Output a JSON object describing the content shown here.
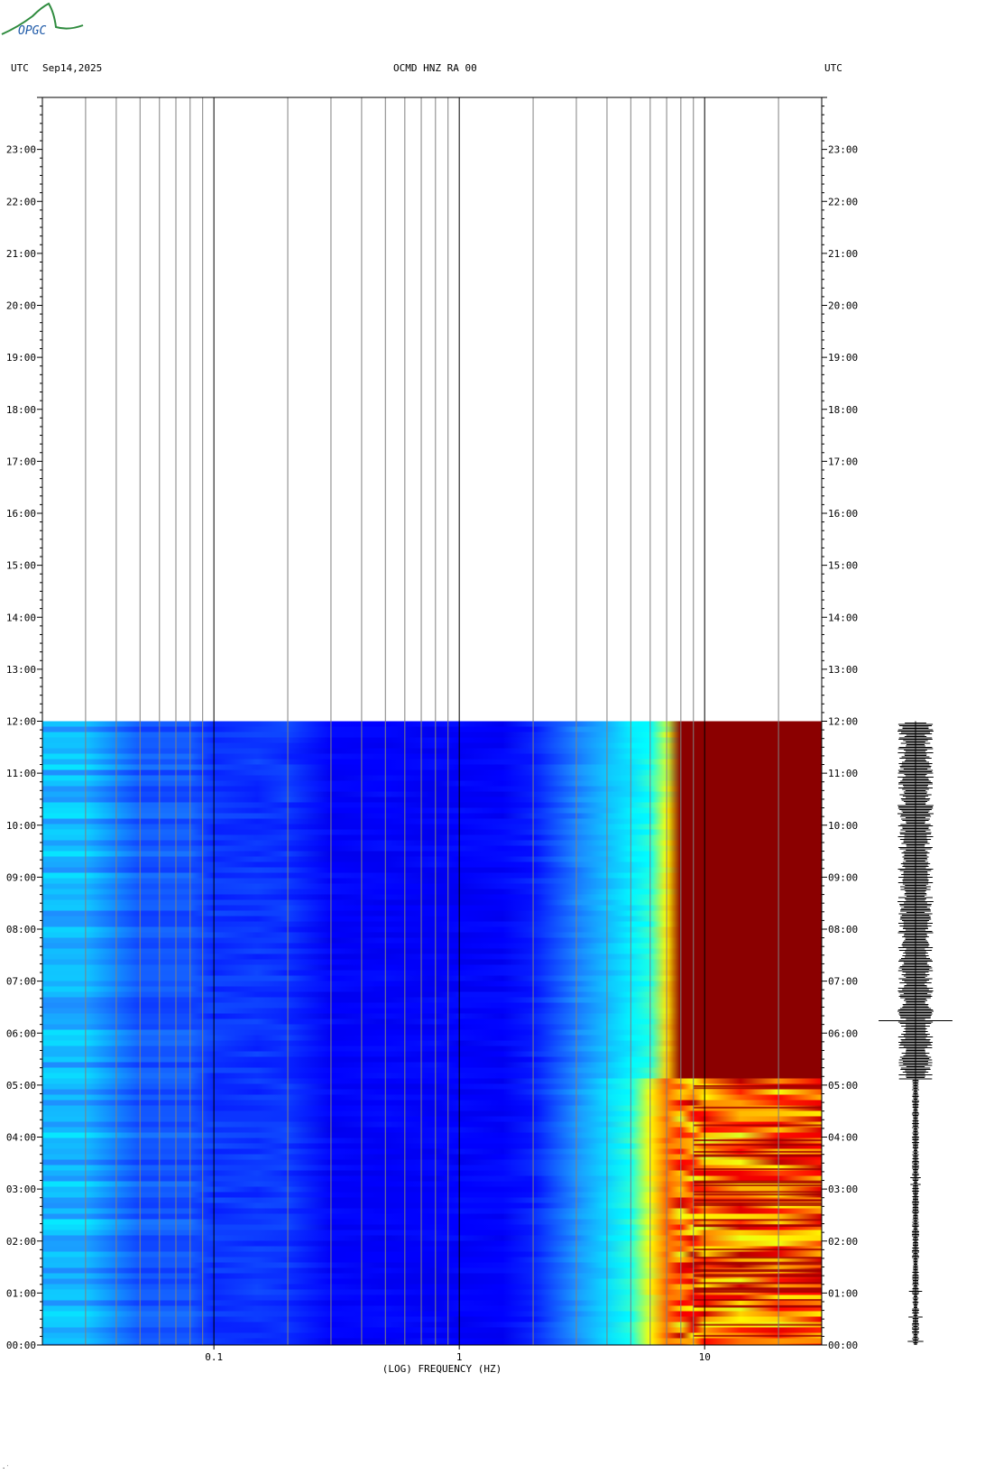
{
  "logo": {
    "text": "OPGC",
    "color": "#2e8b3e",
    "text_color": "#1e5aa8"
  },
  "header": {
    "left_tz": "UTC",
    "date": "Sep14,2025",
    "station": "OCMD HNZ RA 00",
    "right_tz": "UTC"
  },
  "footer": {
    "glyph": "·˙"
  },
  "chart_data": {
    "type": "heatmap",
    "subtype": "spectrogram",
    "title": "OCMD HNZ RA 00",
    "xlabel": "(LOG) FREQUENCY (HZ)",
    "ylabel": "",
    "x_scale": "log",
    "xlim": [
      0.02,
      30
    ],
    "x_ticks": [
      {
        "value": 0.1,
        "label": "0.1"
      },
      {
        "value": 1,
        "label": "1"
      },
      {
        "value": 10,
        "label": "10"
      }
    ],
    "ylim_hours": [
      0,
      24
    ],
    "y_ticks": [
      "00:00",
      "01:00",
      "02:00",
      "03:00",
      "04:00",
      "05:00",
      "06:00",
      "07:00",
      "08:00",
      "09:00",
      "10:00",
      "11:00",
      "12:00",
      "13:00",
      "14:00",
      "15:00",
      "16:00",
      "17:00",
      "18:00",
      "19:00",
      "20:00",
      "21:00",
      "22:00",
      "23:00"
    ],
    "data_end_hour": 12.0,
    "colormap": [
      "#00008b",
      "#0000ff",
      "#1e90ff",
      "#00ffff",
      "#ffff00",
      "#ff8c00",
      "#ff0000",
      "#8b0000"
    ],
    "grid_frequencies": [
      0.03,
      0.04,
      0.05,
      0.06,
      0.07,
      0.08,
      0.09,
      0.1,
      0.2,
      0.3,
      0.4,
      0.5,
      0.6,
      0.7,
      0.8,
      0.9,
      1,
      2,
      3,
      4,
      5,
      6,
      7,
      8,
      9,
      10,
      20
    ],
    "seismogram": {
      "label": "waveform trace",
      "start_hour": 0,
      "end_hour": 12
    }
  }
}
